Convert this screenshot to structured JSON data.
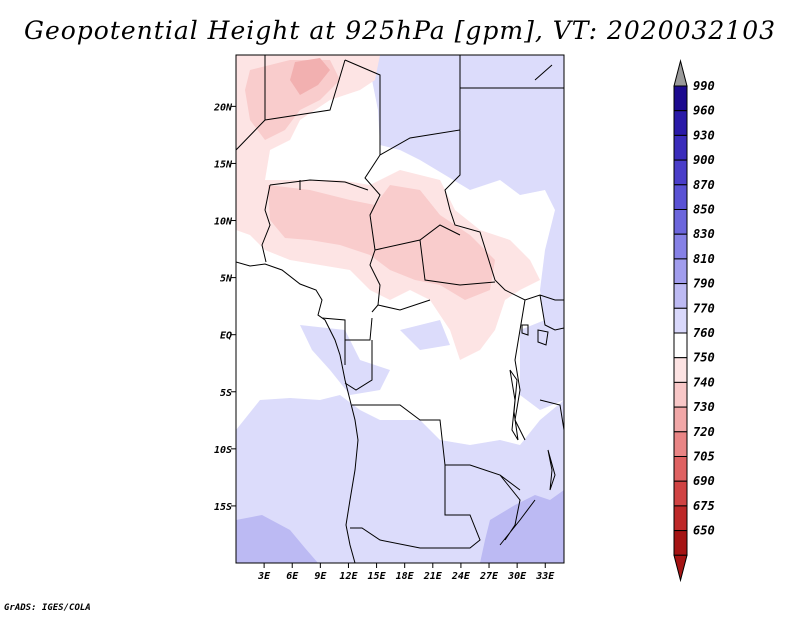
{
  "title": "Geopotential Height at 925hPa [gpm], VT: 2020032103",
  "credit": "GrADS: IGES/COLA",
  "lat_axis": {
    "labels": [
      "20N",
      "15N",
      "10N",
      "5N",
      "EQ",
      "5S",
      "10S",
      "15S"
    ],
    "values": [
      20,
      15,
      10,
      5,
      0,
      -5,
      -10,
      -15
    ]
  },
  "lon_axis": {
    "labels": [
      "3E",
      "6E",
      "9E",
      "12E",
      "15E",
      "18E",
      "21E",
      "24E",
      "27E",
      "30E",
      "33E"
    ],
    "values": [
      3,
      6,
      9,
      12,
      15,
      18,
      21,
      24,
      27,
      30,
      33
    ]
  },
  "map_extent": {
    "lon_min": 0,
    "lon_max": 35,
    "lat_min": -20,
    "lat_max": 24.5
  },
  "legend": {
    "levels": [
      "990",
      "960",
      "930",
      "900",
      "870",
      "850",
      "830",
      "810",
      "790",
      "770",
      "760",
      "750",
      "740",
      "730",
      "720",
      "705",
      "690",
      "675",
      "650"
    ],
    "colors": [
      "#1c0a8f",
      "#2a1aa8",
      "#3a2cbb",
      "#4a3ec9",
      "#5a52d4",
      "#6c66dc",
      "#8681e6",
      "#a19ded",
      "#bdbaf3",
      "#d9d8fb",
      "#ffffff",
      "#fde3e3",
      "#f8c7c7",
      "#f1a7a7",
      "#e98585",
      "#df6262",
      "#d04343",
      "#bd2828",
      "#a51414"
    ],
    "over_color": "#9a9a9a",
    "under_color": "#a51414"
  }
}
